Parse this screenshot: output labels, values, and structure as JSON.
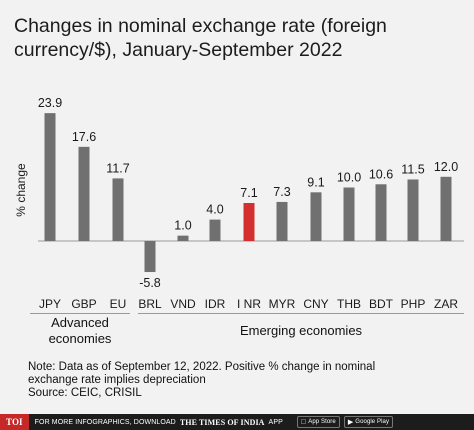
{
  "title": "Changes in nominal exchange rate (foreign currency/$), January-September 2022",
  "chart_data": {
    "type": "bar",
    "title": "Changes in nominal exchange rate (foreign currency/$), January-September 2022",
    "ylabel": "% change",
    "xlabel": "",
    "categories": [
      "JPY",
      "GBP",
      "EU",
      "BRL",
      "VND",
      "IDR",
      "I NR",
      "MYR",
      "CNY",
      "THB",
      "BDT",
      "PHP",
      "ZAR"
    ],
    "values": [
      23.9,
      17.6,
      11.7,
      -5.8,
      1.0,
      4.0,
      7.1,
      7.3,
      9.1,
      10.0,
      10.6,
      11.5,
      12.0
    ],
    "value_labels": [
      "23.9",
      "17.6",
      "11.7",
      "-5.8",
      "1.0",
      "4.0",
      "7.1",
      "7.3",
      "9.1",
      "10.0",
      "10.6",
      "11.5",
      "12.0"
    ],
    "highlight": "I NR",
    "groups": [
      {
        "name": "Advanced economies",
        "categories": [
          "JPY",
          "GBP",
          "EU"
        ]
      },
      {
        "name": "Emerging economies",
        "categories": [
          "BRL",
          "VND",
          "IDR",
          "I NR",
          "MYR",
          "CNY",
          "THB",
          "BDT",
          "PHP",
          "ZAR"
        ]
      }
    ],
    "bar_color": "#707070",
    "highlight_color": "#d32f2f",
    "grid": false
  },
  "groups": {
    "advanced_line1": "Advanced",
    "advanced_line2": "economies",
    "emerging": "Emerging economies"
  },
  "note": {
    "line1": "Note: Data as of September 12, 2022. Positive % change in nominal",
    "line2": "exchange rate implies depreciation",
    "source": "Source: CEIC, CRISIL"
  },
  "footer": {
    "logo": "TOI",
    "promo": "FOR MORE INFOGRAPHICS, DOWNLOAD",
    "brand": "THE TIMES OF INDIA",
    "app": "APP",
    "app_store": "App Store",
    "google_play": "Google Play"
  }
}
